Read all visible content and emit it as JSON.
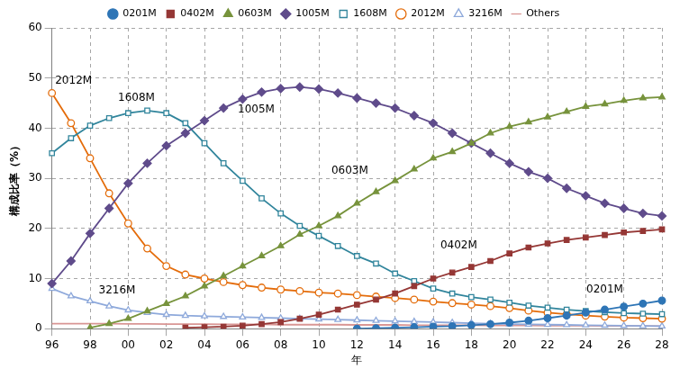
{
  "chart_data": {
    "type": "line",
    "x_label": "年",
    "y_label": "構成比率（%）",
    "categories": [
      "96",
      null,
      "98",
      null,
      "00",
      null,
      "02",
      null,
      "04",
      null,
      "06",
      null,
      "08",
      null,
      "10",
      null,
      "12",
      null,
      "14",
      null,
      "16",
      null,
      "18",
      null,
      "20",
      null,
      "22",
      null,
      "24",
      null,
      "26",
      null,
      "28"
    ],
    "ylim": [
      0,
      60
    ],
    "yticks": [
      0,
      10,
      20,
      30,
      40,
      50,
      60
    ],
    "grid": true,
    "legend": "top",
    "series": [
      {
        "name": "0201M",
        "color": "#2e75b6",
        "marker": "circle",
        "values": [
          null,
          null,
          null,
          null,
          null,
          null,
          null,
          null,
          null,
          null,
          null,
          null,
          null,
          null,
          null,
          null,
          0,
          0.1,
          0.2,
          0.3,
          0.4,
          0.5,
          0.7,
          0.9,
          1.2,
          1.6,
          2.1,
          2.6,
          3.2,
          3.8,
          4.4,
          5.0,
          5.6
        ]
      },
      {
        "name": "0402M",
        "color": "#953735",
        "marker": "square",
        "values": [
          null,
          null,
          null,
          null,
          null,
          null,
          null,
          0.2,
          0.3,
          0.4,
          0.6,
          0.9,
          1.3,
          2.0,
          2.8,
          3.8,
          4.8,
          5.8,
          7.0,
          8.5,
          10.0,
          11.2,
          12.3,
          13.5,
          15.0,
          16.2,
          17.0,
          17.7,
          18.2,
          18.7,
          19.2,
          19.5,
          19.8
        ]
      },
      {
        "name": "0603M",
        "color": "#77933c",
        "marker": "triangle",
        "values": [
          null,
          null,
          0.2,
          1.0,
          2.0,
          3.5,
          5.0,
          6.5,
          8.5,
          10.5,
          12.5,
          14.5,
          16.5,
          18.8,
          20.5,
          22.5,
          25.0,
          27.3,
          29.5,
          31.8,
          34.0,
          35.3,
          37.0,
          39.0,
          40.3,
          41.2,
          42.2,
          43.3,
          44.3,
          44.8,
          45.5,
          46.0,
          46.2
        ]
      },
      {
        "name": "1005M",
        "color": "#5f4b8b",
        "marker": "diamond",
        "values": [
          9.0,
          13.5,
          19.0,
          24.0,
          29.0,
          33.0,
          36.5,
          39.0,
          41.5,
          44.0,
          45.8,
          47.2,
          47.9,
          48.2,
          47.8,
          47.0,
          46.0,
          45.0,
          44.0,
          42.5,
          41.0,
          39.0,
          37.0,
          35.0,
          33.0,
          31.3,
          30.0,
          28.0,
          26.5,
          25.0,
          24.0,
          23.0,
          22.5
        ]
      },
      {
        "name": "1608M",
        "color": "#31859c",
        "marker": "square-open",
        "values": [
          35.0,
          38.0,
          40.5,
          42.0,
          43.0,
          43.5,
          43.0,
          41.0,
          37.0,
          33.0,
          29.5,
          26.0,
          23.0,
          20.5,
          18.5,
          16.5,
          14.5,
          13.0,
          11.0,
          9.5,
          8.0,
          7.0,
          6.3,
          5.8,
          5.2,
          4.6,
          4.2,
          3.8,
          3.5,
          3.3,
          3.1,
          3.0,
          2.9
        ]
      },
      {
        "name": "2012M",
        "color": "#e46c0a",
        "marker": "circle-open",
        "values": [
          47.0,
          41.0,
          34.0,
          27.0,
          21.0,
          16.0,
          12.5,
          10.8,
          10.0,
          9.3,
          8.7,
          8.2,
          7.8,
          7.5,
          7.2,
          7.0,
          6.7,
          6.4,
          6.1,
          5.8,
          5.4,
          5.1,
          4.8,
          4.5,
          4.1,
          3.6,
          3.2,
          2.9,
          2.6,
          2.4,
          2.2,
          2.1,
          2.0
        ]
      },
      {
        "name": "3216M",
        "color": "#8ea9db",
        "marker": "triangle-open",
        "values": [
          8.0,
          6.5,
          5.5,
          4.5,
          3.7,
          3.2,
          2.8,
          2.6,
          2.5,
          2.4,
          2.3,
          2.2,
          2.1,
          2.0,
          1.9,
          1.8,
          1.7,
          1.6,
          1.5,
          1.4,
          1.3,
          1.2,
          1.1,
          1.0,
          0.9,
          0.85,
          0.8,
          0.75,
          0.7,
          0.65,
          0.6,
          0.55,
          0.5
        ]
      },
      {
        "name": "Others",
        "color": "#d99694",
        "marker": "none",
        "values": [
          1.0,
          1.0,
          1.0,
          1.0,
          0.95,
          0.95,
          0.9,
          0.9,
          0.9,
          0.85,
          0.85,
          0.85,
          0.8,
          0.8,
          0.8,
          0.8,
          0.75,
          0.75,
          0.75,
          0.7,
          0.7,
          0.7,
          0.7,
          0.65,
          0.65,
          0.65,
          0.6,
          0.6,
          0.6,
          0.55,
          0.55,
          0.55,
          0.5
        ]
      }
    ],
    "annotations": [
      {
        "text": "2012M"
      },
      {
        "text": "1608M"
      },
      {
        "text": "1005M"
      },
      {
        "text": "0603M"
      },
      {
        "text": "0402M"
      },
      {
        "text": "0201M"
      },
      {
        "text": "3216M"
      }
    ]
  }
}
